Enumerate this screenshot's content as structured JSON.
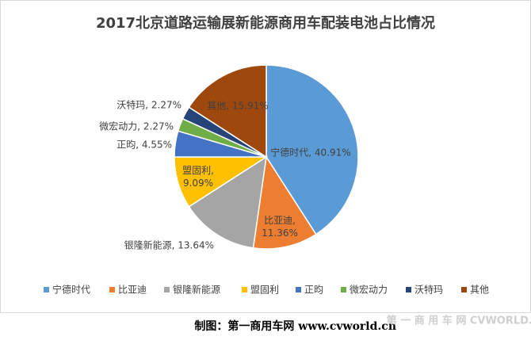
{
  "chart_data": {
    "type": "pie",
    "title": "2017北京道路运输展新能源商用车配装电池占比情况",
    "categories": [
      "宁德时代",
      "比亚迪",
      "银隆新能源",
      "盟固利",
      "正昀",
      "微宏动力",
      "沃特玛",
      "其他"
    ],
    "values": [
      40.91,
      11.36,
      13.64,
      9.09,
      4.55,
      2.27,
      2.27,
      15.91
    ],
    "value_labels": [
      "宁德时代, 40.91%",
      "比亚迪,\n11.36%",
      "银隆新能源, 13.64%",
      "盟固利,\n9.09%",
      "正昀, 4.55%",
      "微宏动力, 2.27%",
      "沃特玛, 2.27%",
      "其他, 15.91%"
    ],
    "colors": [
      "#5b9bd5",
      "#ed7d31",
      "#a5a5a5",
      "#ffc000",
      "#4472c4",
      "#70ad47",
      "#264478",
      "#9e480e"
    ],
    "legend": "bottom",
    "footer": "制图：第一商用车网 www.cvworld.cn",
    "watermark": "第 一 商 用 车 网 CVWORLD.CN"
  }
}
